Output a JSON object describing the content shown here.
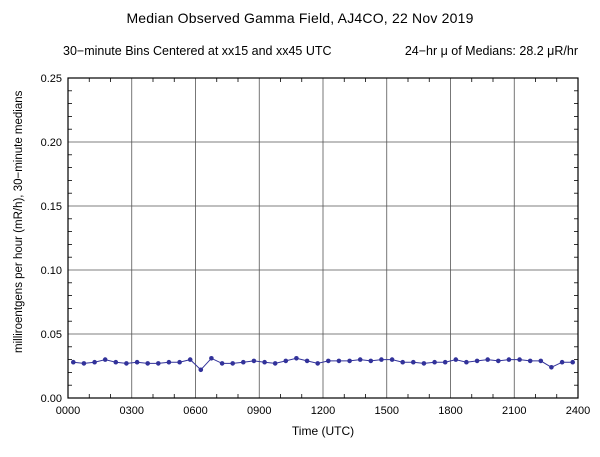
{
  "chart_data": {
    "type": "line",
    "title": "Median Observed Gamma Field, AJ4CO, 22 Nov 2019",
    "subtitle_left": "30−minute Bins Centered at xx15 and xx45 UTC",
    "subtitle_right": "24−hr μ of Medians: 28.2 μR/hr",
    "xlabel": "Time (UTC)",
    "ylabel": "milliroentgens per hour (mR/h), 30−minute medians",
    "xlim": [
      0,
      24
    ],
    "ylim": [
      0,
      0.25
    ],
    "grid": true,
    "line_color": "#32329a",
    "marker_color": "#32329a",
    "frame_color": "#000000",
    "grid_color": "#555555",
    "x_ticks": [
      {
        "v": 0,
        "label": "0000"
      },
      {
        "v": 3,
        "label": "0300"
      },
      {
        "v": 6,
        "label": "0600"
      },
      {
        "v": 9,
        "label": "0900"
      },
      {
        "v": 12,
        "label": "1200"
      },
      {
        "v": 15,
        "label": "1500"
      },
      {
        "v": 18,
        "label": "1800"
      },
      {
        "v": 21,
        "label": "2100"
      },
      {
        "v": 24,
        "label": "2400"
      }
    ],
    "y_ticks": [
      {
        "v": 0.0,
        "label": "0.00"
      },
      {
        "v": 0.05,
        "label": "0.05"
      },
      {
        "v": 0.1,
        "label": "0.10"
      },
      {
        "v": 0.15,
        "label": "0.15"
      },
      {
        "v": 0.2,
        "label": "0.20"
      },
      {
        "v": 0.25,
        "label": "0.25"
      }
    ],
    "times": [
      "0015",
      "0045",
      "0115",
      "0145",
      "0215",
      "0245",
      "0315",
      "0345",
      "0415",
      "0445",
      "0515",
      "0545",
      "0615",
      "0645",
      "0715",
      "0745",
      "0815",
      "0845",
      "0915",
      "0945",
      "1015",
      "1045",
      "1115",
      "1145",
      "1215",
      "1245",
      "1315",
      "1345",
      "1415",
      "1445",
      "1515",
      "1545",
      "1615",
      "1645",
      "1715",
      "1745",
      "1815",
      "1845",
      "1915",
      "1945",
      "2015",
      "2045",
      "2115",
      "2145",
      "2215",
      "2245",
      "2315",
      "2345"
    ],
    "values": [
      0.028,
      0.027,
      0.028,
      0.03,
      0.028,
      0.027,
      0.028,
      0.027,
      0.027,
      0.028,
      0.028,
      0.03,
      0.022,
      0.031,
      0.027,
      0.027,
      0.028,
      0.029,
      0.028,
      0.027,
      0.029,
      0.031,
      0.029,
      0.027,
      0.029,
      0.029,
      0.029,
      0.03,
      0.029,
      0.03,
      0.03,
      0.028,
      0.028,
      0.027,
      0.028,
      0.028,
      0.03,
      0.028,
      0.029,
      0.03,
      0.029,
      0.03,
      0.03,
      0.029,
      0.029,
      0.024,
      0.028,
      0.028
    ]
  }
}
